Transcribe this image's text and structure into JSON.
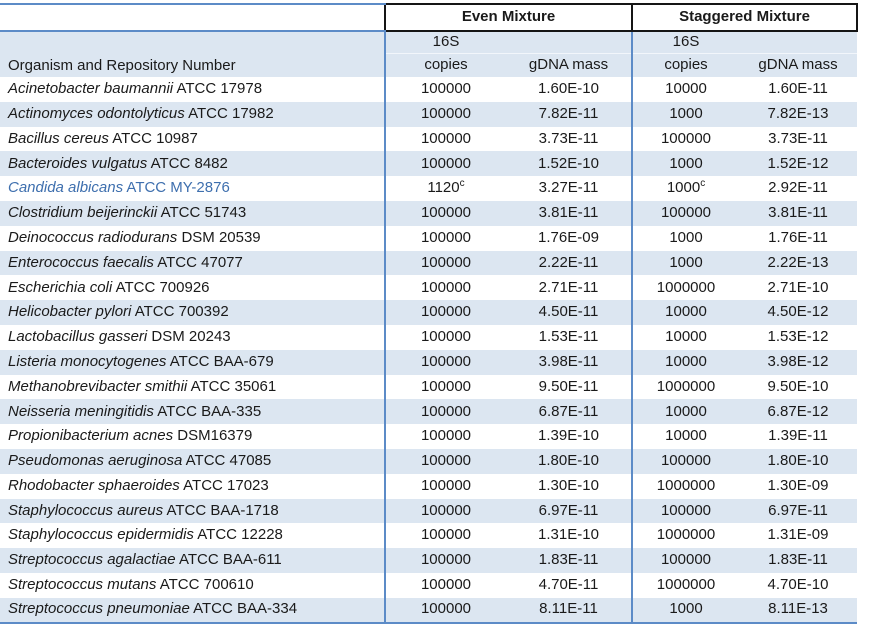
{
  "table": {
    "title": "mock-community-composition-table",
    "group_headers": {
      "even": "Even Mixture",
      "staggered": "Staggered Mixture"
    },
    "subheaders": {
      "organism": "Organism and Repository Number",
      "copies_top": "16S",
      "copies_bottom": "copies",
      "gdna": "gDNA mass"
    }
  },
  "colors": {
    "stripe": "#dce6f1",
    "grid_blue": "#5c8bc7",
    "dark_border": "#151515",
    "highlight_text": "#3e6fae",
    "body_text": "#1a1a1a"
  },
  "rows": [
    {
      "species": "Acinetobacter baumannii",
      "repo": "ATCC 17978",
      "even_copies": "100000",
      "even_gdna": "1.60E-10",
      "stag_copies": "10000",
      "stag_gdna": "1.60E-11"
    },
    {
      "species": "Actinomyces odontolyticus",
      "repo": "ATCC 17982",
      "even_copies": "100000",
      "even_gdna": "7.82E-11",
      "stag_copies": "1000",
      "stag_gdna": "7.82E-13"
    },
    {
      "species": "Bacillus cereus",
      "repo": "ATCC 10987",
      "even_copies": "100000",
      "even_gdna": "3.73E-11",
      "stag_copies": "100000",
      "stag_gdna": "3.73E-11"
    },
    {
      "species": "Bacteroides vulgatus",
      "repo": "ATCC 8482",
      "even_copies": "100000",
      "even_gdna": "1.52E-10",
      "stag_copies": "1000",
      "stag_gdna": "1.52E-12"
    },
    {
      "species": "Candida albicans",
      "repo": "ATCC MY-2876",
      "even_copies": "1120",
      "even_sup": "c",
      "even_gdna": "3.27E-11",
      "stag_copies": "1000",
      "stag_sup": "c",
      "stag_gdna": "2.92E-11",
      "highlight": true
    },
    {
      "species": "Clostridium beijerinckii",
      "repo": "ATCC 51743",
      "even_copies": "100000",
      "even_gdna": "3.81E-11",
      "stag_copies": "100000",
      "stag_gdna": "3.81E-11"
    },
    {
      "species": "Deinococcus radiodurans",
      "repo": "DSM 20539",
      "even_copies": "100000",
      "even_gdna": "1.76E-09",
      "stag_copies": "1000",
      "stag_gdna": "1.76E-11"
    },
    {
      "species": "Enterococcus faecalis",
      "repo": "ATCC 47077",
      "even_copies": "100000",
      "even_gdna": "2.22E-11",
      "stag_copies": "1000",
      "stag_gdna": "2.22E-13"
    },
    {
      "species": "Escherichia coli",
      "repo": "ATCC 700926",
      "even_copies": "100000",
      "even_gdna": "2.71E-11",
      "stag_copies": "1000000",
      "stag_gdna": "2.71E-10"
    },
    {
      "species": "Helicobacter pylori",
      "repo": "ATCC 700392",
      "even_copies": "100000",
      "even_gdna": "4.50E-11",
      "stag_copies": "10000",
      "stag_gdna": "4.50E-12"
    },
    {
      "species": "Lactobacillus gasseri",
      "repo": "DSM 20243",
      "even_copies": "100000",
      "even_gdna": "1.53E-11",
      "stag_copies": "10000",
      "stag_gdna": "1.53E-12"
    },
    {
      "species": "Listeria monocytogenes",
      "repo": "ATCC BAA-679",
      "even_copies": "100000",
      "even_gdna": "3.98E-11",
      "stag_copies": "10000",
      "stag_gdna": "3.98E-12"
    },
    {
      "species": "Methanobrevibacter smithii",
      "repo": "ATCC 35061",
      "even_copies": "100000",
      "even_gdna": "9.50E-11",
      "stag_copies": "1000000",
      "stag_gdna": "9.50E-10"
    },
    {
      "species": "Neisseria meningitidis",
      "repo": "ATCC BAA-335",
      "even_copies": "100000",
      "even_gdna": "6.87E-11",
      "stag_copies": "10000",
      "stag_gdna": "6.87E-12"
    },
    {
      "species": "Propionibacterium acnes",
      "repo": "DSM16379",
      "even_copies": "100000",
      "even_gdna": "1.39E-10",
      "stag_copies": "10000",
      "stag_gdna": "1.39E-11"
    },
    {
      "species": "Pseudomonas aeruginosa",
      "repo": "ATCC 47085",
      "even_copies": "100000",
      "even_gdna": "1.80E-10",
      "stag_copies": "100000",
      "stag_gdna": "1.80E-10"
    },
    {
      "species": "Rhodobacter sphaeroides",
      "repo": "ATCC 17023",
      "even_copies": "100000",
      "even_gdna": "1.30E-10",
      "stag_copies": "1000000",
      "stag_gdna": "1.30E-09"
    },
    {
      "species": "Staphylococcus aureus",
      "repo": "ATCC BAA-1718",
      "even_copies": "100000",
      "even_gdna": "6.97E-11",
      "stag_copies": "100000",
      "stag_gdna": "6.97E-11"
    },
    {
      "species": "Staphylococcus epidermidis",
      "repo": "ATCC 12228",
      "even_copies": "100000",
      "even_gdna": "1.31E-10",
      "stag_copies": "1000000",
      "stag_gdna": "1.31E-09"
    },
    {
      "species": "Streptococcus agalactiae",
      "repo": "ATCC BAA-611",
      "even_copies": "100000",
      "even_gdna": "1.83E-11",
      "stag_copies": "100000",
      "stag_gdna": "1.83E-11"
    },
    {
      "species": "Streptococcus mutans",
      "repo": "ATCC 700610",
      "even_copies": "100000",
      "even_gdna": "4.70E-11",
      "stag_copies": "1000000",
      "stag_gdna": "4.70E-10"
    },
    {
      "species": "Streptococcus pneumoniae",
      "repo": "ATCC BAA-334",
      "even_copies": "100000",
      "even_gdna": "8.11E-11",
      "stag_copies": "1000",
      "stag_gdna": "8.11E-13"
    }
  ]
}
